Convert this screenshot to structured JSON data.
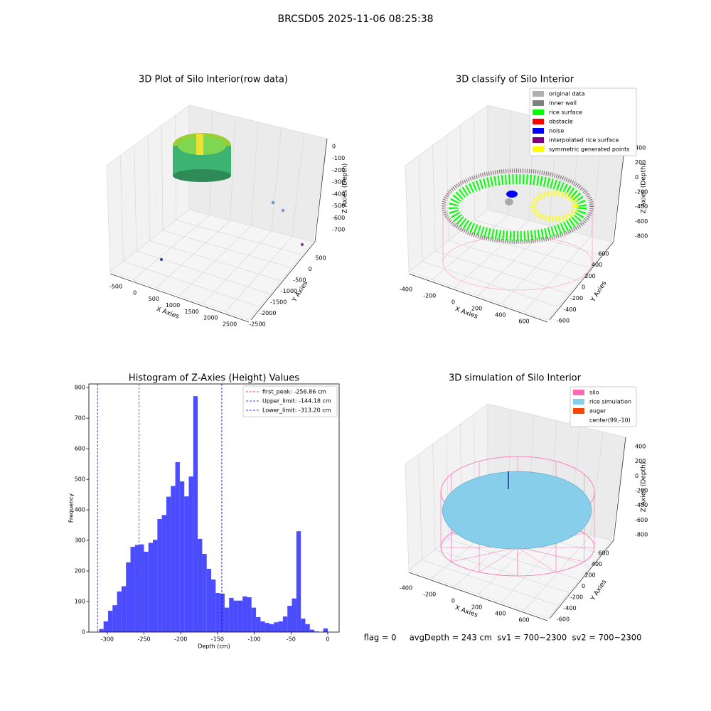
{
  "suptitle": "BRCSD05 2025-11-06 08:25:38",
  "status": "flag = 0     avgDepth = 243 cm  sv1 = 700~2300  sv2 = 700~2300",
  "chart_data": [
    {
      "type": "scatter3d",
      "title": "3D Plot of Silo Interior(row data)",
      "xlabel": "X Axies",
      "ylabel": "Y Axies",
      "zlabel": "Z Axies (Depth)",
      "xticks": [
        -500,
        0,
        500,
        1000,
        1500,
        2000,
        2500
      ],
      "yticks": [
        500,
        0,
        -500,
        -1000,
        -1500,
        -2000,
        -2500
      ],
      "zticks": [
        0,
        -100,
        -200,
        -300,
        -400,
        -500,
        -600,
        -700
      ]
    },
    {
      "type": "scatter3d",
      "title": "3D classify of Silo Interior",
      "xlabel": "X Axies",
      "ylabel": "Y Axies",
      "zlabel": "Z Axies (Depth)",
      "xticks": [
        -400,
        -200,
        0,
        200,
        400,
        600
      ],
      "yticks": [
        600,
        400,
        200,
        0,
        -200,
        -400,
        -600
      ],
      "zticks": [
        400,
        200,
        0,
        -200,
        -400,
        -600,
        -800
      ],
      "legend": [
        {
          "name": "original data",
          "color": "#b0b0b0"
        },
        {
          "name": "inner wall",
          "color": "#808080"
        },
        {
          "name": "rice surface",
          "color": "#00ff00"
        },
        {
          "name": "obstacle",
          "color": "#ff0000"
        },
        {
          "name": "noise",
          "color": "#0000ff"
        },
        {
          "name": "interpolated rice surface",
          "color": "#800080"
        },
        {
          "name": "symmetric generated points",
          "color": "#ffff00"
        }
      ]
    },
    {
      "type": "histogram",
      "title": "Histogram of Z-Axies (Height) Values",
      "xlabel": "Depth (cm)",
      "ylabel": "Frequency",
      "color": "#0000ff",
      "bins": [
        -311.1,
        -305,
        -298.9,
        -292.8,
        -286.7,
        -280.6,
        -274.5,
        -268.4,
        -262.3,
        -256.2,
        -250.1,
        -244,
        -237.9,
        -231.8,
        -225.7,
        -219.6,
        -213.5,
        -207.4,
        -201.3,
        -195.2,
        -189.1,
        -183,
        -176.9,
        -170.8,
        -164.7,
        -158.6,
        -152.5,
        -146.4,
        -140.3,
        -134.2,
        -128.1,
        -122,
        -115.9,
        -109.8,
        -103.7,
        -97.6,
        -91.5,
        -85.4,
        -79.3,
        -73.2,
        -67.1,
        -61,
        -54.9,
        -48.8,
        -42.7,
        -36.6,
        -30.5,
        -24.4,
        -18.3,
        -12.2,
        -6.1,
        0
      ],
      "counts": [
        10,
        35,
        70,
        88,
        133,
        150,
        228,
        279,
        285,
        287,
        263,
        292,
        302,
        370,
        383,
        443,
        478,
        556,
        493,
        444,
        509,
        772,
        305,
        256,
        207,
        172,
        128,
        126,
        80,
        112,
        103,
        103,
        117,
        114,
        80,
        49,
        35,
        30,
        26,
        32,
        35,
        51,
        86,
        110,
        330,
        44,
        26,
        8,
        2,
        0,
        12
      ],
      "xlim": [
        -325,
        15.5
      ],
      "ylim": [
        0,
        812
      ],
      "xticks": [
        -300,
        -250,
        -200,
        -150,
        -100,
        -50,
        0
      ],
      "yticks": [
        0,
        100,
        200,
        300,
        400,
        500,
        600,
        700,
        800
      ],
      "vlines": [
        {
          "label": "first_peak: -256.86 cm",
          "value": -256.86,
          "color": "#ff0000"
        },
        {
          "label": "Upper_limit: -144.18 cm",
          "value": -144.18,
          "color": "#0000ff"
        },
        {
          "label": "Lower_limit: -313.20 cm",
          "value": -313.2,
          "color": "#0000ff"
        }
      ]
    },
    {
      "type": "scatter3d",
      "title": "3D simulation of Silo Interior",
      "xlabel": "X Axies",
      "ylabel": "Y Axies",
      "zlabel": "Z Axies (Depth)",
      "xticks": [
        -400,
        -200,
        0,
        200,
        400,
        600
      ],
      "yticks": [
        600,
        400,
        200,
        0,
        -200,
        -400,
        -600
      ],
      "zticks": [
        400,
        200,
        0,
        -200,
        -400,
        -600,
        -800
      ],
      "legend": [
        {
          "name": "silo",
          "color": "#ff69b4"
        },
        {
          "name": "rice simulation",
          "color": "#87ceeb"
        },
        {
          "name": "auger",
          "color": "#ff4500"
        },
        {
          "name": "center(99,-10)"
        }
      ]
    }
  ]
}
